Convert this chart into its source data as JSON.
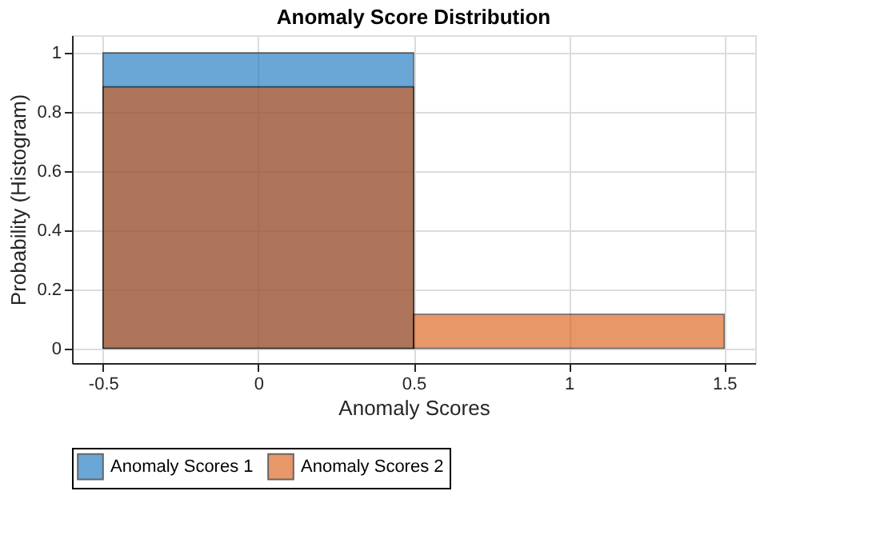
{
  "chart_data": {
    "type": "histogram",
    "title": "Anomaly Score Distribution",
    "xlabel": "Anomaly Scores",
    "ylabel": "Probability (Histogram)",
    "bins": [
      -0.5,
      0.5,
      1.5
    ],
    "series": [
      {
        "name": "Anomaly Scores 1",
        "color": "#6ba7d7",
        "values": [
          1,
          null
        ]
      },
      {
        "name": "Anomaly Scores 2",
        "color": "#e9986a",
        "values": [
          0.885,
          0.115
        ]
      }
    ],
    "xlim": [
      -0.6,
      1.6
    ],
    "ylim": [
      -0.05,
      1.06
    ],
    "xticks": [
      -0.5,
      0,
      0.5,
      1,
      1.5
    ],
    "yticks": [
      0,
      0.2,
      0.4,
      0.6,
      0.8,
      1
    ],
    "grid": true,
    "legend": "bottom"
  }
}
